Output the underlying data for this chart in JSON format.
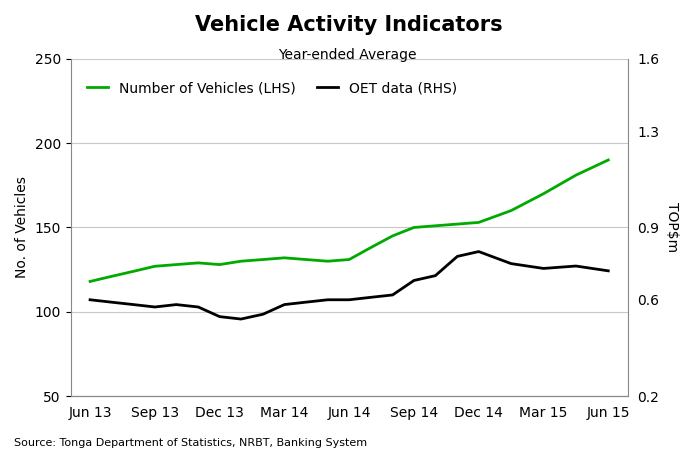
{
  "title": "Vehicle Activity Indicators",
  "subtitle": "Year-ended Average",
  "ylabel_left": "No. of Vehicles",
  "ylabel_right": "TOP$m",
  "source": "Source: Tonga Department of Statistics, NRBT, Banking System",
  "x_labels": [
    "Jun 13",
    "Sep 13",
    "Dec 13",
    "Mar 14",
    "Jun 14",
    "Sep 14",
    "Dec 14",
    "Mar 15",
    "Jun 15"
  ],
  "lhs_x": [
    0,
    0.33,
    0.67,
    1,
    1.33,
    1.67,
    2,
    2.33,
    2.67,
    3,
    3.33,
    3.67,
    4,
    4.33,
    4.67,
    5,
    5.33,
    5.67,
    6,
    6.5,
    7,
    7.5,
    8
  ],
  "lhs_y": [
    118,
    121,
    124,
    127,
    128,
    129,
    128,
    130,
    131,
    132,
    131,
    130,
    131,
    138,
    145,
    150,
    151,
    152,
    153,
    160,
    170,
    181,
    190
  ],
  "rhs_x": [
    0,
    0.33,
    0.67,
    1,
    1.33,
    1.67,
    2,
    2.33,
    2.67,
    3,
    3.33,
    3.67,
    4,
    4.33,
    4.67,
    5,
    5.33,
    5.67,
    6,
    6.5,
    7,
    7.5,
    8
  ],
  "rhs_y": [
    0.6,
    0.59,
    0.58,
    0.57,
    0.58,
    0.57,
    0.53,
    0.52,
    0.54,
    0.58,
    0.59,
    0.6,
    0.6,
    0.61,
    0.62,
    0.68,
    0.7,
    0.78,
    0.8,
    0.75,
    0.73,
    0.74,
    0.72
  ],
  "lhs_color": "#00aa00",
  "rhs_color": "#000000",
  "lhs_label": "Number of Vehicles (LHS)",
  "rhs_label": "OET data (RHS)",
  "ylim_left": [
    50,
    250
  ],
  "ylim_right": [
    0.2,
    1.6
  ],
  "yticks_left": [
    50,
    100,
    150,
    200,
    250
  ],
  "yticks_right": [
    0.2,
    0.6,
    0.9,
    1.3,
    1.6
  ],
  "background_color": "#ffffff",
  "grid_color": "#c8c8c8",
  "title_fontsize": 15,
  "subtitle_fontsize": 10,
  "label_fontsize": 10,
  "tick_fontsize": 10,
  "legend_fontsize": 10,
  "source_fontsize": 8,
  "line_width": 2.0
}
